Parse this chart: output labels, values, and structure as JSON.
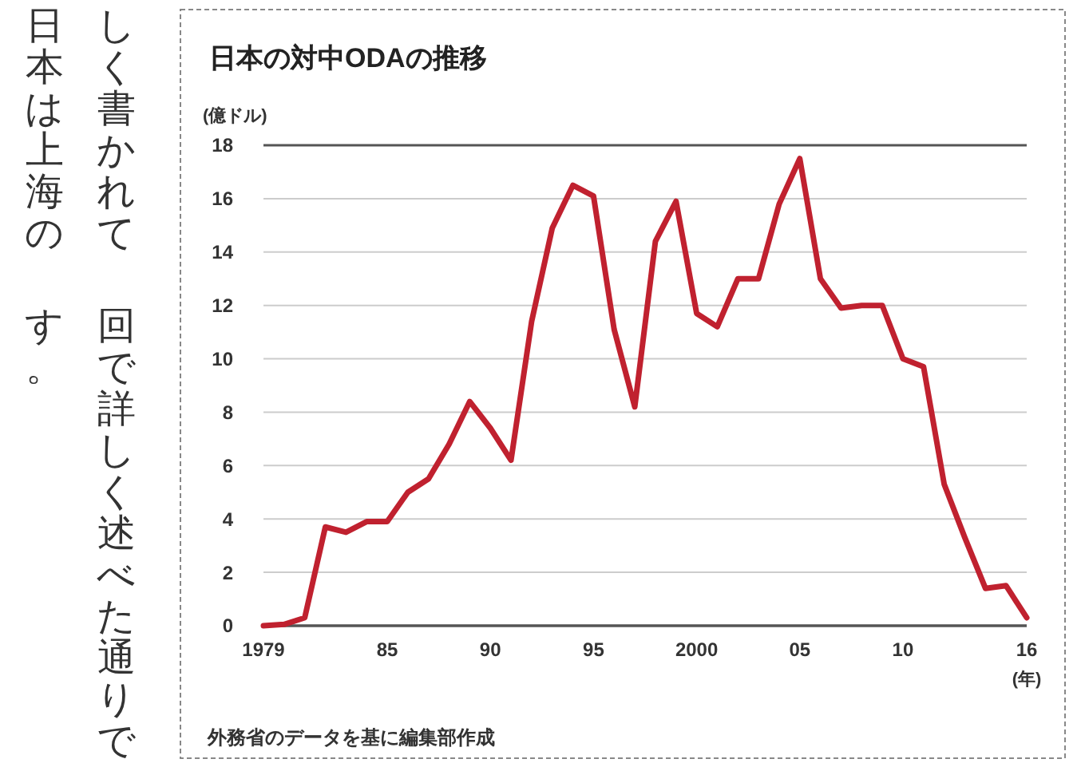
{
  "chart_data": {
    "type": "line",
    "title": "日本の対中ODAの推移",
    "ylabel": "(億ドル)",
    "xlabel": "(年)",
    "x": [
      1979,
      1980,
      1981,
      1982,
      1983,
      1984,
      1985,
      1986,
      1987,
      1988,
      1989,
      1990,
      1991,
      1992,
      1993,
      1994,
      1995,
      1996,
      1997,
      1998,
      1999,
      2000,
      2001,
      2002,
      2003,
      2004,
      2005,
      2006,
      2007,
      2008,
      2009,
      2010,
      2011,
      2012,
      2013,
      2014,
      2015,
      2016
    ],
    "series": [
      {
        "color": "#c0212f",
        "values": [
          0,
          0.05,
          0.3,
          3.7,
          3.5,
          3.9,
          3.9,
          5.0,
          5.5,
          6.8,
          8.4,
          7.4,
          6.2,
          11.4,
          14.9,
          16.5,
          16.1,
          11.1,
          8.2,
          14.4,
          15.9,
          11.7,
          11.2,
          13.0,
          13.0,
          15.8,
          17.5,
          13.0,
          11.9,
          12.0,
          12.0,
          10.0,
          9.7,
          5.3,
          3.3,
          1.4,
          1.5,
          0.3
        ]
      }
    ],
    "xlim": [
      1979,
      2016
    ],
    "xticks": [
      1979,
      {
        "value": 1985,
        "label": "85"
      },
      {
        "value": 1990,
        "label": "90"
      },
      {
        "value": 1995,
        "label": "95"
      },
      2000,
      {
        "value": 2005,
        "label": "05"
      },
      {
        "value": 2010,
        "label": "10"
      },
      {
        "value": 2016,
        "label": "16"
      }
    ],
    "ylim": [
      0,
      18
    ],
    "yticks": [
      0,
      2,
      4,
      6,
      8,
      10,
      12,
      14,
      16,
      18
    ],
    "grid": "y",
    "marker": "none",
    "line_style": "solid",
    "annotations": [
      "外務省のデータを基に編集部作成",
      "しく書かれて",
      "回で詳しく述べた通りで",
      "日本は上海の",
      "す。"
    ]
  }
}
